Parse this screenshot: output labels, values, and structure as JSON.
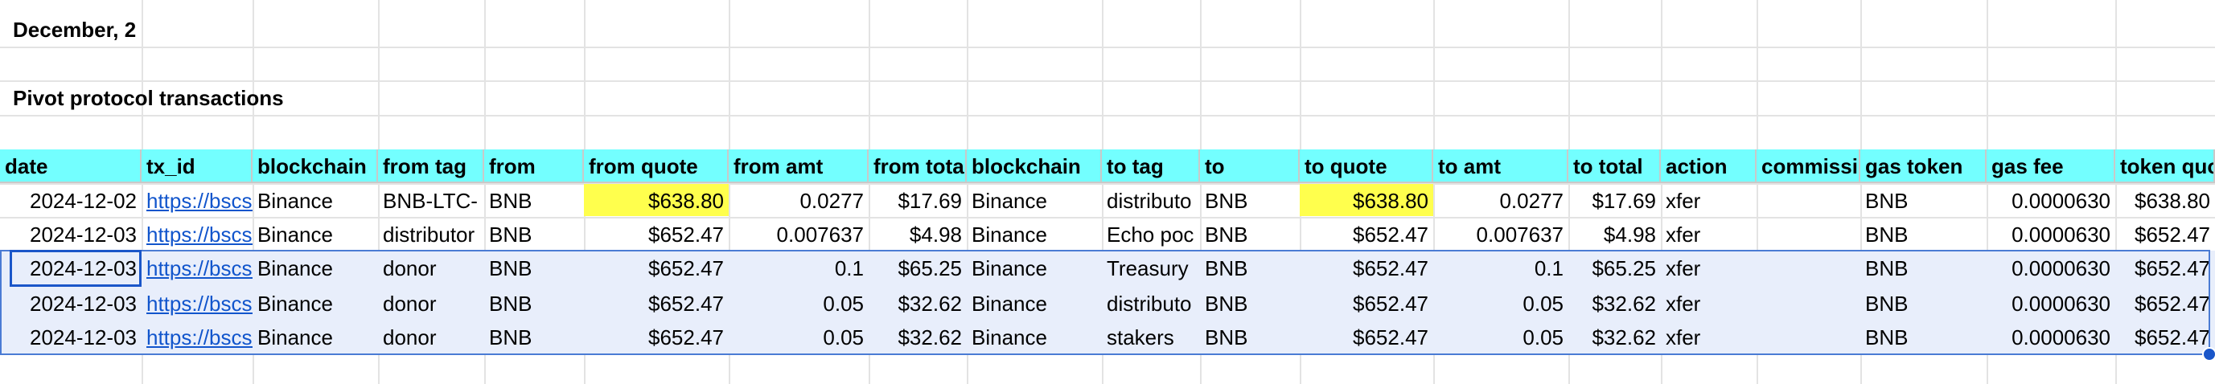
{
  "sheet": {
    "date_heading": "December, 2",
    "section_title": "Pivot protocol transactions",
    "headers": [
      "date",
      "tx_id",
      "blockchain",
      "from tag",
      "from",
      "from quote",
      "from amt",
      "from total",
      "blockchain",
      "to tag",
      "to",
      "to quote",
      "to amt",
      "to total",
      "action",
      "commissio",
      "gas token",
      "gas fee",
      "token quot"
    ],
    "rows": [
      [
        "2024-12-02",
        "https://bscsc",
        "Binance",
        "BNB-LTC-",
        "BNB",
        "$638.80",
        "0.0277",
        "$17.69",
        "Binance",
        "distributo",
        "BNB",
        "$638.80",
        "0.0277",
        "$17.69",
        "xfer",
        "",
        "BNB",
        "0.0000630",
        "$638.80"
      ],
      [
        "2024-12-03",
        "https://bscsc",
        "Binance",
        "distributor",
        "BNB",
        "$652.47",
        "0.007637",
        "$4.98",
        "Binance",
        "Echo poc",
        "BNB",
        "$652.47",
        "0.007637",
        "$4.98",
        "xfer",
        "",
        "BNB",
        "0.0000630",
        "$652.47"
      ],
      [
        "2024-12-03",
        "https://bscsc",
        "Binance",
        "donor",
        "BNB",
        "$652.47",
        "0.1",
        "$65.25",
        "Binance",
        "Treasury",
        "BNB",
        "$652.47",
        "0.1",
        "$65.25",
        "xfer",
        "",
        "BNB",
        "0.0000630",
        "$652.47"
      ],
      [
        "2024-12-03",
        "https://bscsc",
        "Binance",
        "donor",
        "BNB",
        "$652.47",
        "0.05",
        "$32.62",
        "Binance",
        "distributo",
        "BNB",
        "$652.47",
        "0.05",
        "$32.62",
        "xfer",
        "",
        "BNB",
        "0.0000630",
        "$652.47"
      ],
      [
        "2024-12-03",
        "https://bscsc",
        "Binance",
        "donor",
        "BNB",
        "$652.47",
        "0.05",
        "$32.62",
        "Binance",
        "stakers",
        "BNB",
        "$652.47",
        "0.05",
        "$32.62",
        "xfer",
        "",
        "BNB",
        "0.0000630",
        "$652.47"
      ]
    ],
    "highlight_color": "#ffff4d",
    "header_color": "#73ffff",
    "selection_color": "#4a7bd4"
  }
}
